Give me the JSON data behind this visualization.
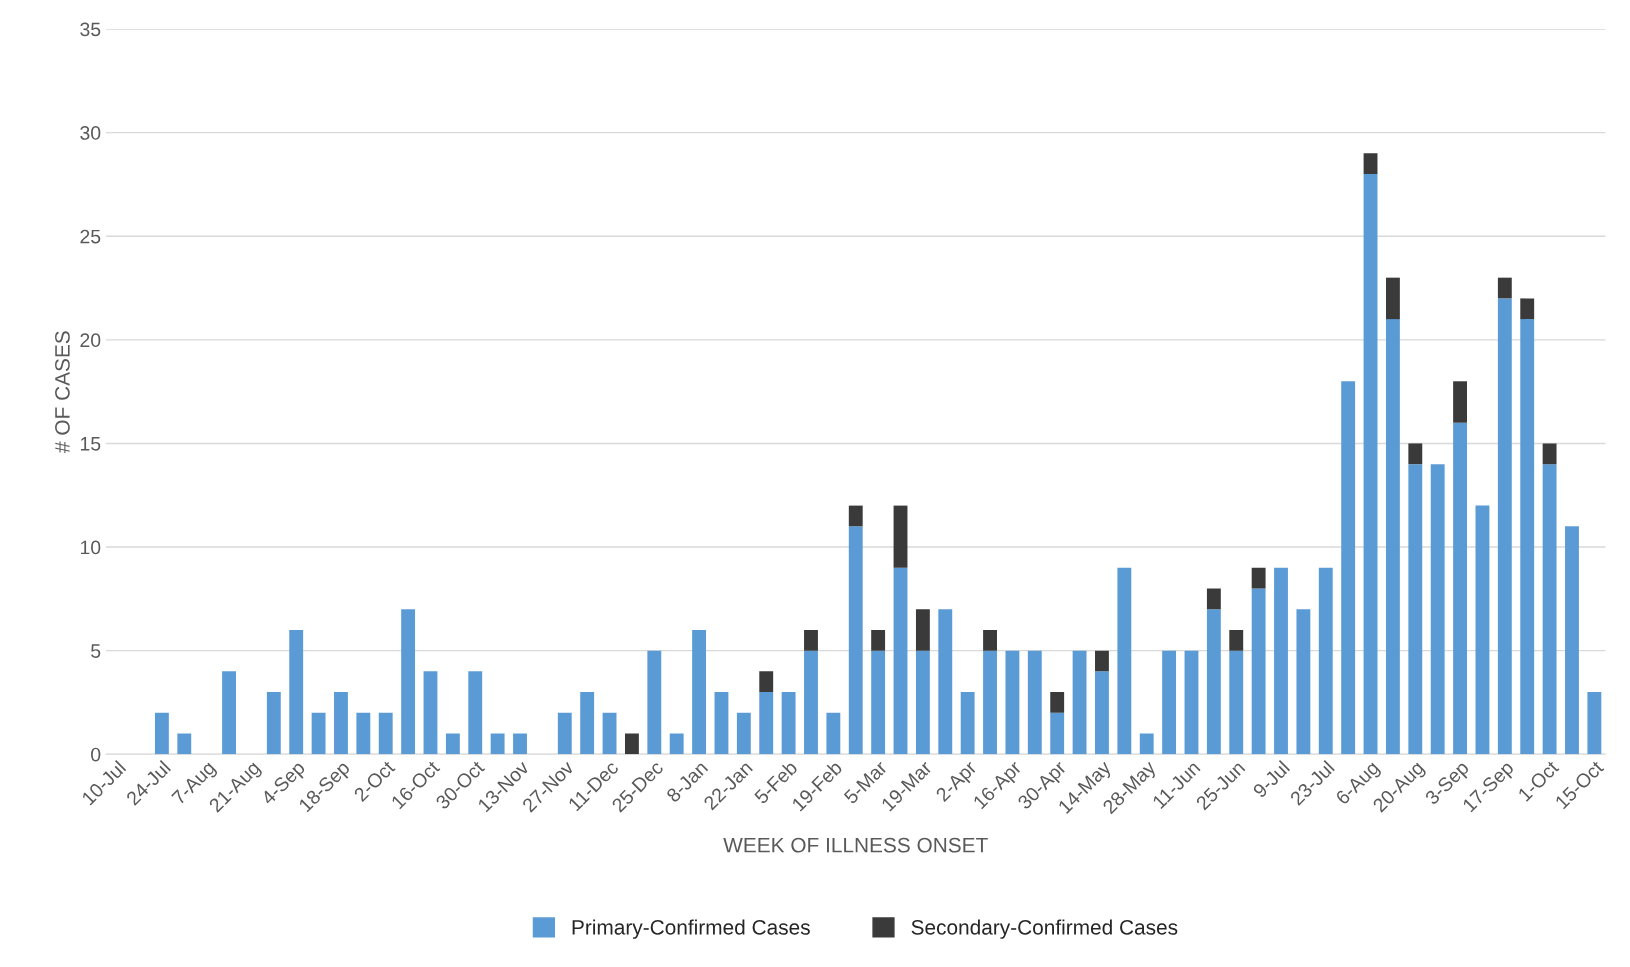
{
  "chart_data": {
    "type": "bar",
    "stacked": true,
    "xlabel": "WEEK OF ILLNESS ONSET",
    "ylabel": "# OF CASES",
    "categories": [
      "10-Jul",
      null,
      "24-Jul",
      null,
      "7-Aug",
      null,
      "21-Aug",
      null,
      "4-Sep",
      null,
      "18-Sep",
      null,
      "2-Oct",
      null,
      "16-Oct",
      null,
      "30-Oct",
      null,
      "13-Nov",
      null,
      "27-Nov",
      null,
      "11-Dec",
      null,
      "25-Dec",
      null,
      "8-Jan",
      null,
      "22-Jan",
      null,
      "5-Feb",
      null,
      "19-Feb",
      null,
      "5-Mar",
      null,
      "19-Mar",
      null,
      "2-Apr",
      null,
      "16-Apr",
      null,
      "30-Apr",
      null,
      "14-May",
      null,
      "28-May",
      null,
      "11-Jun",
      null,
      "25-Jun",
      null,
      "9-Jul",
      null,
      "23-Jul",
      null,
      "6-Aug",
      null,
      "20-Aug",
      null,
      "3-Sep",
      null,
      "17-Sep",
      null,
      "1-Oct",
      null,
      "15-Oct"
    ],
    "series": [
      {
        "name": "Primary-Confirmed Cases",
        "color": "#5b9bd5",
        "values": [
          0,
          0,
          2,
          1,
          0,
          4,
          0,
          3,
          6,
          2,
          3,
          2,
          2,
          7,
          4,
          1,
          4,
          1,
          1,
          0,
          2,
          3,
          2,
          0,
          5,
          1,
          6,
          3,
          2,
          3,
          3,
          5,
          2,
          11,
          5,
          9,
          5,
          7,
          3,
          5,
          5,
          5,
          2,
          5,
          4,
          9,
          1,
          5,
          5,
          7,
          5,
          8,
          9,
          7,
          9,
          18,
          28,
          21,
          14,
          14,
          16,
          12,
          22,
          21,
          14,
          11,
          3
        ]
      },
      {
        "name": "Secondary-Confirmed Cases",
        "color": "#3a3a3a",
        "values": [
          0,
          0,
          0,
          0,
          0,
          0,
          0,
          0,
          0,
          0,
          0,
          0,
          0,
          0,
          0,
          0,
          0,
          0,
          0,
          0,
          0,
          0,
          0,
          1,
          0,
          0,
          0,
          0,
          0,
          1,
          0,
          1,
          0,
          1,
          1,
          3,
          2,
          0,
          0,
          1,
          0,
          0,
          1,
          0,
          1,
          0,
          0,
          0,
          0,
          1,
          1,
          1,
          0,
          0,
          0,
          0,
          1,
          2,
          1,
          0,
          2,
          0,
          1,
          1,
          1,
          0,
          0
        ]
      }
    ],
    "ylim": [
      0,
      35
    ],
    "yticks": [
      0,
      5,
      10,
      15,
      20,
      25,
      30,
      35
    ],
    "grid": "y",
    "legend": "bottom"
  }
}
